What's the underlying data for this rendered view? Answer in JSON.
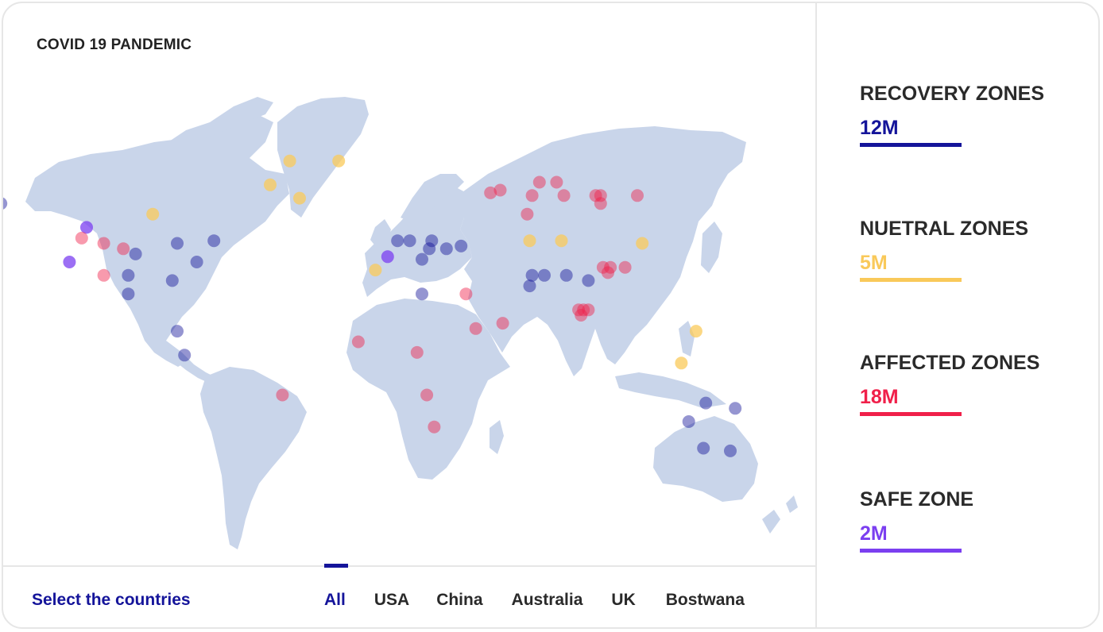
{
  "title": "COVID 19 PANDEMIC",
  "footer": {
    "label": "Select the countries",
    "tabs": [
      {
        "label": "All",
        "active": true
      },
      {
        "label": "USA",
        "active": false
      },
      {
        "label": "China",
        "active": false
      },
      {
        "label": "Australia",
        "active": false
      },
      {
        "label": "UK",
        "active": false
      },
      {
        "label": "Bostwana",
        "active": false
      }
    ]
  },
  "legend": [
    {
      "label": "RECOVERY ZONES",
      "value": "12M",
      "color": "#14149a"
    },
    {
      "label": "NUETRAL ZONES",
      "value": "5M",
      "color": "#f9c95a"
    },
    {
      "label": "AFFECTED ZONES",
      "value": "18M",
      "color": "#f0204a"
    },
    {
      "label": "SAFE ZONE",
      "value": "2M",
      "color": "#7b3ff0"
    }
  ],
  "colors": {
    "land": "#c9d5ea",
    "recovery": "#14149a",
    "neutral": "#f9c95a",
    "affected": "#f0204a",
    "safe": "#7b3ff0"
  },
  "markers": [
    {
      "lon": -160,
      "lat": 62,
      "zone": "recovery"
    },
    {
      "lon": -125,
      "lat": 53,
      "zone": "safe"
    },
    {
      "lon": -127,
      "lat": 49,
      "zone": "affected"
    },
    {
      "lon": -118,
      "lat": 47,
      "zone": "affected"
    },
    {
      "lon": -110,
      "lat": 45,
      "zone": "affected"
    },
    {
      "lon": -105,
      "lat": 43,
      "zone": "recovery"
    },
    {
      "lon": -88,
      "lat": 47,
      "zone": "recovery"
    },
    {
      "lon": -73,
      "lat": 48,
      "zone": "recovery"
    },
    {
      "lon": -80,
      "lat": 40,
      "zone": "recovery"
    },
    {
      "lon": -108,
      "lat": 35,
      "zone": "recovery"
    },
    {
      "lon": -90,
      "lat": 33,
      "zone": "recovery"
    },
    {
      "lon": -108,
      "lat": 28,
      "zone": "recovery"
    },
    {
      "lon": -118,
      "lat": 35,
      "zone": "affected"
    },
    {
      "lon": -132,
      "lat": 40,
      "zone": "safe"
    },
    {
      "lon": -98,
      "lat": 58,
      "zone": "neutral"
    },
    {
      "lon": -88,
      "lat": 14,
      "zone": "recovery"
    },
    {
      "lon": -85,
      "lat": 5,
      "zone": "recovery"
    },
    {
      "lon": -45,
      "lat": -10,
      "zone": "affected"
    },
    {
      "lon": -42,
      "lat": 78,
      "zone": "neutral"
    },
    {
      "lon": -22,
      "lat": 78,
      "zone": "neutral"
    },
    {
      "lon": -50,
      "lat": 69,
      "zone": "neutral"
    },
    {
      "lon": -38,
      "lat": 64,
      "zone": "neutral"
    },
    {
      "lon": -7,
      "lat": 37,
      "zone": "neutral"
    },
    {
      "lon": -2,
      "lat": 42,
      "zone": "safe"
    },
    {
      "lon": 2,
      "lat": 48,
      "zone": "recovery"
    },
    {
      "lon": 7,
      "lat": 48,
      "zone": "recovery"
    },
    {
      "lon": 16,
      "lat": 48,
      "zone": "recovery"
    },
    {
      "lon": 15,
      "lat": 45,
      "zone": "recovery"
    },
    {
      "lon": 12,
      "lat": 41,
      "zone": "recovery"
    },
    {
      "lon": 22,
      "lat": 45,
      "zone": "recovery"
    },
    {
      "lon": 28,
      "lat": 46,
      "zone": "recovery"
    },
    {
      "lon": 12,
      "lat": 28,
      "zone": "recovery"
    },
    {
      "lon": 30,
      "lat": 28,
      "zone": "affected"
    },
    {
      "lon": 34,
      "lat": 15,
      "zone": "affected"
    },
    {
      "lon": 45,
      "lat": 17,
      "zone": "affected"
    },
    {
      "lon": -14,
      "lat": 10,
      "zone": "affected"
    },
    {
      "lon": 10,
      "lat": 6,
      "zone": "affected"
    },
    {
      "lon": 14,
      "lat": -10,
      "zone": "affected"
    },
    {
      "lon": 17,
      "lat": -22,
      "zone": "affected"
    },
    {
      "lon": 40,
      "lat": 66,
      "zone": "affected"
    },
    {
      "lon": 44,
      "lat": 67,
      "zone": "affected"
    },
    {
      "lon": 60,
      "lat": 70,
      "zone": "affected"
    },
    {
      "lon": 67,
      "lat": 70,
      "zone": "affected"
    },
    {
      "lon": 57,
      "lat": 65,
      "zone": "affected"
    },
    {
      "lon": 70,
      "lat": 65,
      "zone": "affected"
    },
    {
      "lon": 83,
      "lat": 65,
      "zone": "affected"
    },
    {
      "lon": 85,
      "lat": 65,
      "zone": "affected"
    },
    {
      "lon": 85,
      "lat": 62,
      "zone": "affected"
    },
    {
      "lon": 100,
      "lat": 65,
      "zone": "affected"
    },
    {
      "lon": 55,
      "lat": 58,
      "zone": "affected"
    },
    {
      "lon": 56,
      "lat": 48,
      "zone": "neutral"
    },
    {
      "lon": 69,
      "lat": 48,
      "zone": "neutral"
    },
    {
      "lon": 102,
      "lat": 47,
      "zone": "neutral"
    },
    {
      "lon": 57,
      "lat": 35,
      "zone": "recovery"
    },
    {
      "lon": 62,
      "lat": 35,
      "zone": "recovery"
    },
    {
      "lon": 56,
      "lat": 31,
      "zone": "recovery"
    },
    {
      "lon": 71,
      "lat": 35,
      "zone": "recovery"
    },
    {
      "lon": 80,
      "lat": 33,
      "zone": "recovery"
    },
    {
      "lon": 86,
      "lat": 38,
      "zone": "affected"
    },
    {
      "lon": 89,
      "lat": 38,
      "zone": "affected"
    },
    {
      "lon": 88,
      "lat": 36,
      "zone": "affected"
    },
    {
      "lon": 95,
      "lat": 38,
      "zone": "affected"
    },
    {
      "lon": 76,
      "lat": 22,
      "zone": "affected"
    },
    {
      "lon": 78,
      "lat": 22,
      "zone": "affected"
    },
    {
      "lon": 80,
      "lat": 22,
      "zone": "affected"
    },
    {
      "lon": 77,
      "lat": 20,
      "zone": "affected"
    },
    {
      "lon": 124,
      "lat": 14,
      "zone": "neutral"
    },
    {
      "lon": 118,
      "lat": 2,
      "zone": "neutral"
    },
    {
      "lon": 128,
      "lat": -13,
      "zone": "recovery"
    },
    {
      "lon": 140,
      "lat": -15,
      "zone": "recovery"
    },
    {
      "lon": 121,
      "lat": -20,
      "zone": "recovery"
    },
    {
      "lon": 127,
      "lat": -30,
      "zone": "recovery"
    },
    {
      "lon": 138,
      "lat": -31,
      "zone": "recovery"
    }
  ]
}
